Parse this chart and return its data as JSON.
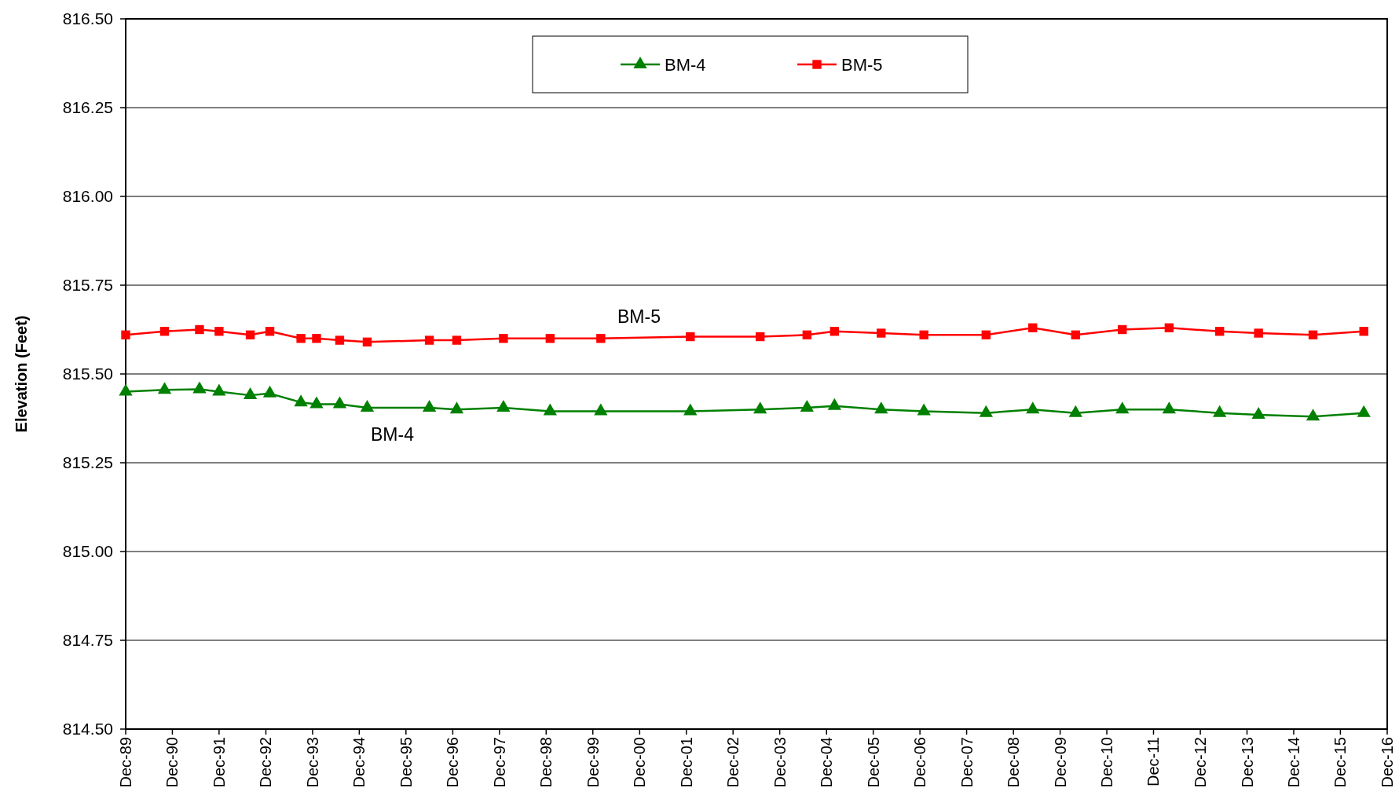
{
  "chart_data": {
    "type": "line",
    "ylabel": "Elevation (Feet)",
    "x": [
      "1989-12",
      "1990-10",
      "1991-07",
      "1991-12",
      "1992-08",
      "1993-01",
      "1993-09",
      "1994-01",
      "1994-07",
      "1995-02",
      "1996-06",
      "1997-01",
      "1998-01",
      "1999-01",
      "2000-02",
      "2002-01",
      "2003-07",
      "2004-07",
      "2005-02",
      "2006-02",
      "2007-01",
      "2008-05",
      "2009-05",
      "2010-04",
      "2011-04",
      "2012-04",
      "2013-05",
      "2014-03",
      "2015-05",
      "2016-06"
    ],
    "series": [
      {
        "name": "BM-4",
        "color": "#008000",
        "marker": "triangle",
        "values": [
          815.45,
          815.455,
          815.457,
          815.45,
          815.44,
          815.445,
          815.42,
          815.415,
          815.415,
          815.405,
          815.405,
          815.4,
          815.405,
          815.395,
          815.395,
          815.395,
          815.4,
          815.405,
          815.41,
          815.4,
          815.395,
          815.39,
          815.4,
          815.39,
          815.4,
          815.4,
          815.39,
          815.385,
          815.38,
          815.39
        ]
      },
      {
        "name": "BM-5",
        "color": "#ff0000",
        "marker": "square",
        "values": [
          815.61,
          815.62,
          815.625,
          815.62,
          815.61,
          815.62,
          815.6,
          815.6,
          815.595,
          815.59,
          815.595,
          815.595,
          815.6,
          815.6,
          815.6,
          815.605,
          815.605,
          815.61,
          815.62,
          815.615,
          815.61,
          815.61,
          815.63,
          815.61,
          815.625,
          815.63,
          815.62,
          815.615,
          815.61,
          815.62
        ]
      }
    ],
    "ylim": [
      814.5,
      816.5
    ],
    "yticks": [
      {
        "value": 814.5,
        "label": "814.50"
      },
      {
        "value": 814.75,
        "label": "814.75"
      },
      {
        "value": 815,
        "label": "815.00"
      },
      {
        "value": 815.25,
        "label": "815.25"
      },
      {
        "value": 815.5,
        "label": "815.50"
      },
      {
        "value": 815.75,
        "label": "815.75"
      },
      {
        "value": 816,
        "label": "816.00"
      },
      {
        "value": 816.25,
        "label": "816.25"
      },
      {
        "value": 816.5,
        "label": "816.50"
      }
    ],
    "xlim": [
      "1989-12",
      "2016-12"
    ],
    "xticks": [
      {
        "value": "1989-12",
        "label": "Dec-89"
      },
      {
        "value": "1990-12",
        "label": "Dec-90"
      },
      {
        "value": "1991-12",
        "label": "Dec-91"
      },
      {
        "value": "1992-12",
        "label": "Dec-92"
      },
      {
        "value": "1993-12",
        "label": "Dec-93"
      },
      {
        "value": "1994-12",
        "label": "Dec-94"
      },
      {
        "value": "1995-12",
        "label": "Dec-95"
      },
      {
        "value": "1996-12",
        "label": "Dec-96"
      },
      {
        "value": "1997-12",
        "label": "Dec-97"
      },
      {
        "value": "1998-12",
        "label": "Dec-98"
      },
      {
        "value": "1999-12",
        "label": "Dec-99"
      },
      {
        "value": "2000-12",
        "label": "Dec-00"
      },
      {
        "value": "2001-12",
        "label": "Dec-01"
      },
      {
        "value": "2002-12",
        "label": "Dec-02"
      },
      {
        "value": "2003-12",
        "label": "Dec-03"
      },
      {
        "value": "2004-12",
        "label": "Dec-04"
      },
      {
        "value": "2005-12",
        "label": "Dec-05"
      },
      {
        "value": "2006-12",
        "label": "Dec-06"
      },
      {
        "value": "2007-12",
        "label": "Dec-07"
      },
      {
        "value": "2008-12",
        "label": "Dec-08"
      },
      {
        "value": "2009-12",
        "label": "Dec-09"
      },
      {
        "value": "2010-12",
        "label": "Dec-10"
      },
      {
        "value": "2011-12",
        "label": "Dec-11"
      },
      {
        "value": "2012-12",
        "label": "Dec-12"
      },
      {
        "value": "2013-12",
        "label": "Dec-13"
      },
      {
        "value": "2014-12",
        "label": "Dec-14"
      },
      {
        "value": "2015-12",
        "label": "Dec-15"
      },
      {
        "value": "2016-12",
        "label": "Dec-16"
      }
    ],
    "grid": "y",
    "legend": "top",
    "line_style": "solid",
    "annotations": [
      "BM-5",
      "BM-4"
    ]
  }
}
